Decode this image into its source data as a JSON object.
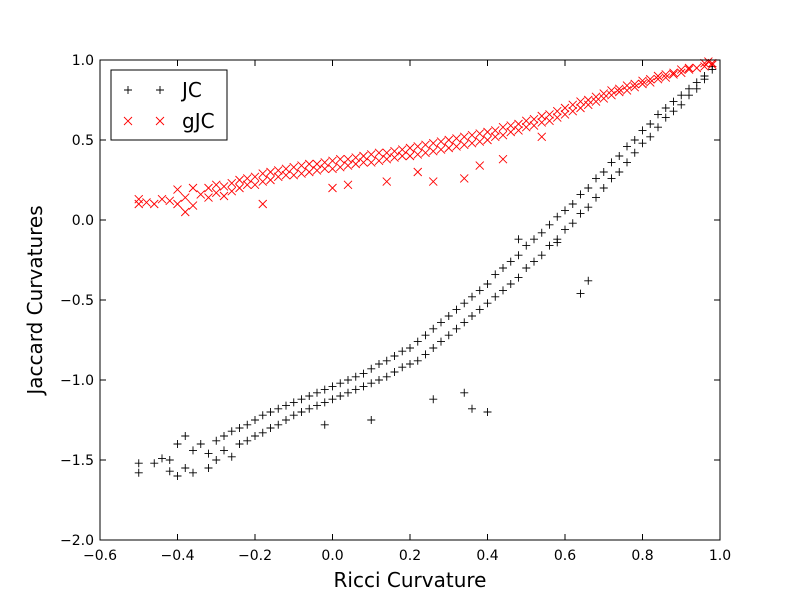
{
  "chart_data": {
    "type": "scatter",
    "title": "",
    "xlabel": "Ricci Curvature",
    "ylabel": "Jaccard Curvatures",
    "xlim": [
      -0.6,
      1.0
    ],
    "ylim": [
      -2.0,
      1.0
    ],
    "xticks": [
      -0.6,
      -0.4,
      -0.2,
      0.0,
      0.2,
      0.4,
      0.6,
      0.8,
      1.0
    ],
    "xtick_labels": [
      "−0.6",
      "−0.4",
      "−0.2",
      "0.0",
      "0.2",
      "0.4",
      "0.6",
      "0.8",
      "1.0"
    ],
    "yticks": [
      -2.0,
      -1.5,
      -1.0,
      -0.5,
      0.0,
      0.5,
      1.0
    ],
    "ytick_labels": [
      "−2.0",
      "−1.5",
      "−1.0",
      "−0.5",
      "0.0",
      "0.5",
      "1.0"
    ],
    "grid": false,
    "legend": "top-left",
    "series": [
      {
        "name": "JC",
        "marker": "plus",
        "color": "#000000",
        "points": [
          [
            -0.5,
            -1.52
          ],
          [
            -0.5,
            -1.58
          ],
          [
            -0.46,
            -1.52
          ],
          [
            -0.44,
            -1.49
          ],
          [
            -0.42,
            -1.5
          ],
          [
            -0.42,
            -1.57
          ],
          [
            -0.4,
            -1.4
          ],
          [
            -0.4,
            -1.6
          ],
          [
            -0.38,
            -1.35
          ],
          [
            -0.38,
            -1.55
          ],
          [
            -0.36,
            -1.44
          ],
          [
            -0.36,
            -1.58
          ],
          [
            -0.34,
            -1.4
          ],
          [
            -0.32,
            -1.46
          ],
          [
            -0.32,
            -1.55
          ],
          [
            -0.3,
            -1.38
          ],
          [
            -0.3,
            -1.5
          ],
          [
            -0.28,
            -1.35
          ],
          [
            -0.28,
            -1.44
          ],
          [
            -0.26,
            -1.32
          ],
          [
            -0.26,
            -1.48
          ],
          [
            -0.24,
            -1.3
          ],
          [
            -0.24,
            -1.4
          ],
          [
            -0.22,
            -1.28
          ],
          [
            -0.22,
            -1.38
          ],
          [
            -0.2,
            -1.25
          ],
          [
            -0.2,
            -1.35
          ],
          [
            -0.18,
            -1.22
          ],
          [
            -0.18,
            -1.33
          ],
          [
            -0.16,
            -1.2
          ],
          [
            -0.16,
            -1.3
          ],
          [
            -0.14,
            -1.18
          ],
          [
            -0.14,
            -1.28
          ],
          [
            -0.12,
            -1.16
          ],
          [
            -0.12,
            -1.25
          ],
          [
            -0.1,
            -1.14
          ],
          [
            -0.1,
            -1.22
          ],
          [
            -0.08,
            -1.12
          ],
          [
            -0.08,
            -1.2
          ],
          [
            -0.06,
            -1.1
          ],
          [
            -0.06,
            -1.18
          ],
          [
            -0.04,
            -1.08
          ],
          [
            -0.04,
            -1.16
          ],
          [
            -0.02,
            -1.06
          ],
          [
            -0.02,
            -1.14
          ],
          [
            0.0,
            -1.04
          ],
          [
            0.0,
            -1.12
          ],
          [
            0.02,
            -1.02
          ],
          [
            0.02,
            -1.1
          ],
          [
            0.04,
            -1.0
          ],
          [
            0.04,
            -1.08
          ],
          [
            0.06,
            -0.98
          ],
          [
            0.06,
            -1.06
          ],
          [
            0.08,
            -0.96
          ],
          [
            0.08,
            -1.04
          ],
          [
            0.1,
            -0.93
          ],
          [
            0.1,
            -1.02
          ],
          [
            0.12,
            -0.9
          ],
          [
            0.12,
            -1.0
          ],
          [
            0.14,
            -0.88
          ],
          [
            0.14,
            -0.98
          ],
          [
            0.16,
            -0.85
          ],
          [
            0.16,
            -0.95
          ],
          [
            0.18,
            -0.82
          ],
          [
            0.18,
            -0.92
          ],
          [
            0.2,
            -0.8
          ],
          [
            0.2,
            -0.9
          ],
          [
            0.22,
            -0.76
          ],
          [
            0.22,
            -0.88
          ],
          [
            0.24,
            -0.72
          ],
          [
            0.24,
            -0.84
          ],
          [
            0.26,
            -0.68
          ],
          [
            0.26,
            -0.8
          ],
          [
            0.28,
            -0.64
          ],
          [
            0.28,
            -0.76
          ],
          [
            0.3,
            -0.6
          ],
          [
            0.3,
            -0.72
          ],
          [
            0.32,
            -0.56
          ],
          [
            0.32,
            -0.68
          ],
          [
            0.34,
            -0.52
          ],
          [
            0.34,
            -0.64
          ],
          [
            0.36,
            -0.48
          ],
          [
            0.36,
            -0.6
          ],
          [
            0.38,
            -0.44
          ],
          [
            0.38,
            -0.56
          ],
          [
            0.4,
            -0.4
          ],
          [
            0.4,
            -0.52
          ],
          [
            0.42,
            -0.34
          ],
          [
            0.42,
            -0.48
          ],
          [
            0.44,
            -0.3
          ],
          [
            0.44,
            -0.44
          ],
          [
            0.46,
            -0.26
          ],
          [
            0.46,
            -0.4
          ],
          [
            0.48,
            -0.22
          ],
          [
            0.48,
            -0.36
          ],
          [
            0.5,
            -0.16
          ],
          [
            0.5,
            -0.3
          ],
          [
            0.52,
            -0.12
          ],
          [
            0.52,
            -0.26
          ],
          [
            0.54,
            -0.08
          ],
          [
            0.54,
            -0.22
          ],
          [
            0.56,
            -0.03
          ],
          [
            0.56,
            -0.16
          ],
          [
            0.58,
            0.02
          ],
          [
            0.58,
            -0.12
          ],
          [
            0.6,
            0.06
          ],
          [
            0.6,
            -0.06
          ],
          [
            0.62,
            0.1
          ],
          [
            0.62,
            -0.02
          ],
          [
            0.64,
            0.16
          ],
          [
            0.64,
            0.04
          ],
          [
            0.66,
            0.2
          ],
          [
            0.66,
            0.08
          ],
          [
            0.68,
            0.26
          ],
          [
            0.68,
            0.14
          ],
          [
            0.7,
            0.3
          ],
          [
            0.7,
            0.2
          ],
          [
            0.72,
            0.36
          ],
          [
            0.72,
            0.26
          ],
          [
            0.74,
            0.4
          ],
          [
            0.74,
            0.3
          ],
          [
            0.76,
            0.46
          ],
          [
            0.76,
            0.36
          ],
          [
            0.78,
            0.5
          ],
          [
            0.78,
            0.42
          ],
          [
            0.8,
            0.56
          ],
          [
            0.8,
            0.48
          ],
          [
            0.82,
            0.6
          ],
          [
            0.82,
            0.52
          ],
          [
            0.84,
            0.66
          ],
          [
            0.84,
            0.58
          ],
          [
            0.86,
            0.7
          ],
          [
            0.86,
            0.64
          ],
          [
            0.88,
            0.74
          ],
          [
            0.88,
            0.68
          ],
          [
            0.9,
            0.78
          ],
          [
            0.9,
            0.72
          ],
          [
            0.92,
            0.82
          ],
          [
            0.92,
            0.78
          ],
          [
            0.94,
            0.86
          ],
          [
            0.94,
            0.82
          ],
          [
            0.96,
            0.9
          ],
          [
            0.96,
            0.88
          ],
          [
            0.98,
            0.94
          ],
          [
            0.98,
            0.96
          ],
          [
            0.64,
            -0.46
          ],
          [
            0.66,
            -0.38
          ],
          [
            0.58,
            -0.14
          ],
          [
            0.48,
            -0.12
          ],
          [
            0.4,
            -1.2
          ],
          [
            0.34,
            -1.08
          ],
          [
            0.36,
            -1.18
          ],
          [
            0.1,
            -1.25
          ],
          [
            -0.02,
            -1.28
          ],
          [
            0.26,
            -1.12
          ]
        ]
      },
      {
        "name": "gJC",
        "marker": "x",
        "color": "#ff0000",
        "points": [
          [
            -0.5,
            0.1
          ],
          [
            -0.5,
            0.13
          ],
          [
            -0.48,
            0.11
          ],
          [
            -0.46,
            0.1
          ],
          [
            -0.44,
            0.13
          ],
          [
            -0.42,
            0.12
          ],
          [
            -0.4,
            0.1
          ],
          [
            -0.4,
            0.19
          ],
          [
            -0.38,
            0.05
          ],
          [
            -0.38,
            0.14
          ],
          [
            -0.36,
            0.2
          ],
          [
            -0.36,
            0.09
          ],
          [
            -0.34,
            0.16
          ],
          [
            -0.32,
            0.14
          ],
          [
            -0.32,
            0.2
          ],
          [
            -0.3,
            0.17
          ],
          [
            -0.3,
            0.22
          ],
          [
            -0.28,
            0.15
          ],
          [
            -0.28,
            0.21
          ],
          [
            -0.26,
            0.18
          ],
          [
            -0.26,
            0.23
          ],
          [
            -0.24,
            0.2
          ],
          [
            -0.24,
            0.25
          ],
          [
            -0.22,
            0.22
          ],
          [
            -0.22,
            0.26
          ],
          [
            -0.2,
            0.22
          ],
          [
            -0.2,
            0.27
          ],
          [
            -0.18,
            0.24
          ],
          [
            -0.18,
            0.29
          ],
          [
            -0.16,
            0.25
          ],
          [
            -0.16,
            0.3
          ],
          [
            -0.14,
            0.27
          ],
          [
            -0.14,
            0.31
          ],
          [
            -0.12,
            0.28
          ],
          [
            -0.12,
            0.32
          ],
          [
            -0.1,
            0.28
          ],
          [
            -0.1,
            0.33
          ],
          [
            -0.08,
            0.29
          ],
          [
            -0.08,
            0.34
          ],
          [
            -0.06,
            0.3
          ],
          [
            -0.06,
            0.35
          ],
          [
            -0.04,
            0.31
          ],
          [
            -0.04,
            0.35
          ],
          [
            -0.02,
            0.32
          ],
          [
            -0.02,
            0.36
          ],
          [
            0.0,
            0.32
          ],
          [
            0.0,
            0.37
          ],
          [
            0.02,
            0.33
          ],
          [
            0.02,
            0.38
          ],
          [
            0.04,
            0.34
          ],
          [
            0.04,
            0.38
          ],
          [
            0.06,
            0.35
          ],
          [
            0.06,
            0.39
          ],
          [
            0.08,
            0.36
          ],
          [
            0.08,
            0.4
          ],
          [
            0.1,
            0.36
          ],
          [
            0.1,
            0.41
          ],
          [
            0.12,
            0.37
          ],
          [
            0.12,
            0.42
          ],
          [
            0.14,
            0.38
          ],
          [
            0.14,
            0.42
          ],
          [
            0.16,
            0.39
          ],
          [
            0.16,
            0.43
          ],
          [
            0.18,
            0.4
          ],
          [
            0.18,
            0.44
          ],
          [
            0.2,
            0.4
          ],
          [
            0.2,
            0.45
          ],
          [
            0.22,
            0.41
          ],
          [
            0.22,
            0.46
          ],
          [
            0.24,
            0.42
          ],
          [
            0.24,
            0.47
          ],
          [
            0.26,
            0.43
          ],
          [
            0.26,
            0.48
          ],
          [
            0.28,
            0.44
          ],
          [
            0.28,
            0.49
          ],
          [
            0.3,
            0.45
          ],
          [
            0.3,
            0.5
          ],
          [
            0.32,
            0.46
          ],
          [
            0.32,
            0.51
          ],
          [
            0.34,
            0.47
          ],
          [
            0.34,
            0.52
          ],
          [
            0.36,
            0.48
          ],
          [
            0.36,
            0.53
          ],
          [
            0.38,
            0.49
          ],
          [
            0.38,
            0.54
          ],
          [
            0.4,
            0.5
          ],
          [
            0.4,
            0.55
          ],
          [
            0.42,
            0.52
          ],
          [
            0.42,
            0.56
          ],
          [
            0.44,
            0.53
          ],
          [
            0.44,
            0.58
          ],
          [
            0.46,
            0.55
          ],
          [
            0.46,
            0.59
          ],
          [
            0.48,
            0.56
          ],
          [
            0.48,
            0.6
          ],
          [
            0.5,
            0.58
          ],
          [
            0.5,
            0.62
          ],
          [
            0.52,
            0.59
          ],
          [
            0.52,
            0.63
          ],
          [
            0.54,
            0.61
          ],
          [
            0.54,
            0.65
          ],
          [
            0.56,
            0.62
          ],
          [
            0.56,
            0.66
          ],
          [
            0.58,
            0.64
          ],
          [
            0.58,
            0.68
          ],
          [
            0.6,
            0.66
          ],
          [
            0.6,
            0.7
          ],
          [
            0.62,
            0.68
          ],
          [
            0.62,
            0.72
          ],
          [
            0.64,
            0.7
          ],
          [
            0.64,
            0.74
          ],
          [
            0.66,
            0.72
          ],
          [
            0.66,
            0.75
          ],
          [
            0.68,
            0.74
          ],
          [
            0.68,
            0.77
          ],
          [
            0.7,
            0.76
          ],
          [
            0.7,
            0.79
          ],
          [
            0.72,
            0.78
          ],
          [
            0.72,
            0.81
          ],
          [
            0.74,
            0.8
          ],
          [
            0.74,
            0.82
          ],
          [
            0.76,
            0.81
          ],
          [
            0.76,
            0.84
          ],
          [
            0.78,
            0.83
          ],
          [
            0.78,
            0.85
          ],
          [
            0.8,
            0.85
          ],
          [
            0.8,
            0.87
          ],
          [
            0.82,
            0.86
          ],
          [
            0.82,
            0.88
          ],
          [
            0.84,
            0.88
          ],
          [
            0.84,
            0.9
          ],
          [
            0.86,
            0.89
          ],
          [
            0.86,
            0.91
          ],
          [
            0.88,
            0.91
          ],
          [
            0.88,
            0.92
          ],
          [
            0.9,
            0.92
          ],
          [
            0.9,
            0.94
          ],
          [
            0.92,
            0.94
          ],
          [
            0.92,
            0.95
          ],
          [
            0.94,
            0.95
          ],
          [
            0.96,
            0.96
          ],
          [
            0.96,
            0.98
          ],
          [
            0.98,
            0.98
          ],
          [
            0.98,
            0.97
          ],
          [
            0.97,
            0.99
          ],
          [
            -0.18,
            0.1
          ],
          [
            0.04,
            0.22
          ],
          [
            0.0,
            0.2
          ],
          [
            0.14,
            0.24
          ],
          [
            0.22,
            0.3
          ],
          [
            0.26,
            0.24
          ],
          [
            0.34,
            0.26
          ],
          [
            0.38,
            0.34
          ],
          [
            0.44,
            0.38
          ],
          [
            0.54,
            0.52
          ]
        ]
      }
    ]
  }
}
